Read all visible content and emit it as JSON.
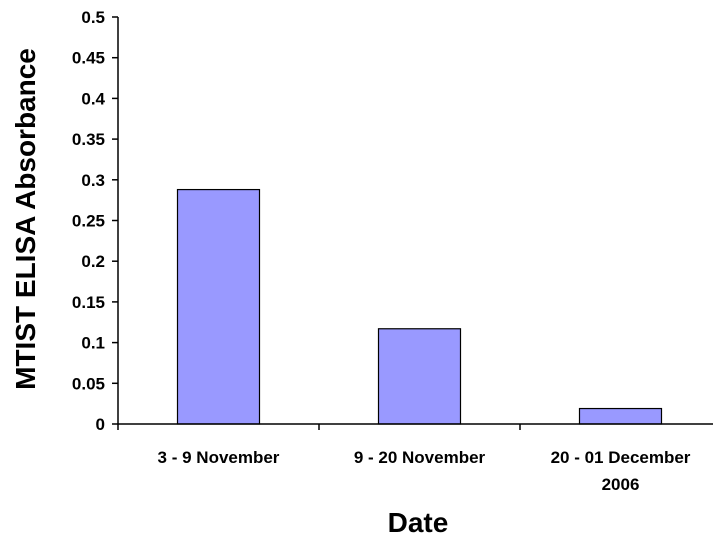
{
  "chart_data": {
    "type": "bar",
    "title": "",
    "xlabel": "Date",
    "ylabel": "MTIST ELISA Absorbance",
    "categories": [
      [
        "3 - 9 November"
      ],
      [
        "9 - 20 November"
      ],
      [
        "20 - 01 December",
        "2006"
      ]
    ],
    "values": [
      0.288,
      0.117,
      0.019
    ],
    "ylim": [
      0,
      0.5
    ],
    "yticks": [
      0,
      0.05,
      0.1,
      0.15,
      0.2,
      0.25,
      0.3,
      0.35,
      0.4,
      0.45,
      0.5
    ],
    "ytick_labels": [
      "0",
      "0.05",
      "0.1",
      "0.15",
      "0.2",
      "0.25",
      "0.3",
      "0.35",
      "0.4",
      "0.45",
      "0.5"
    ],
    "grid": false,
    "legend": "none",
    "bar_color": "#9999ff"
  }
}
